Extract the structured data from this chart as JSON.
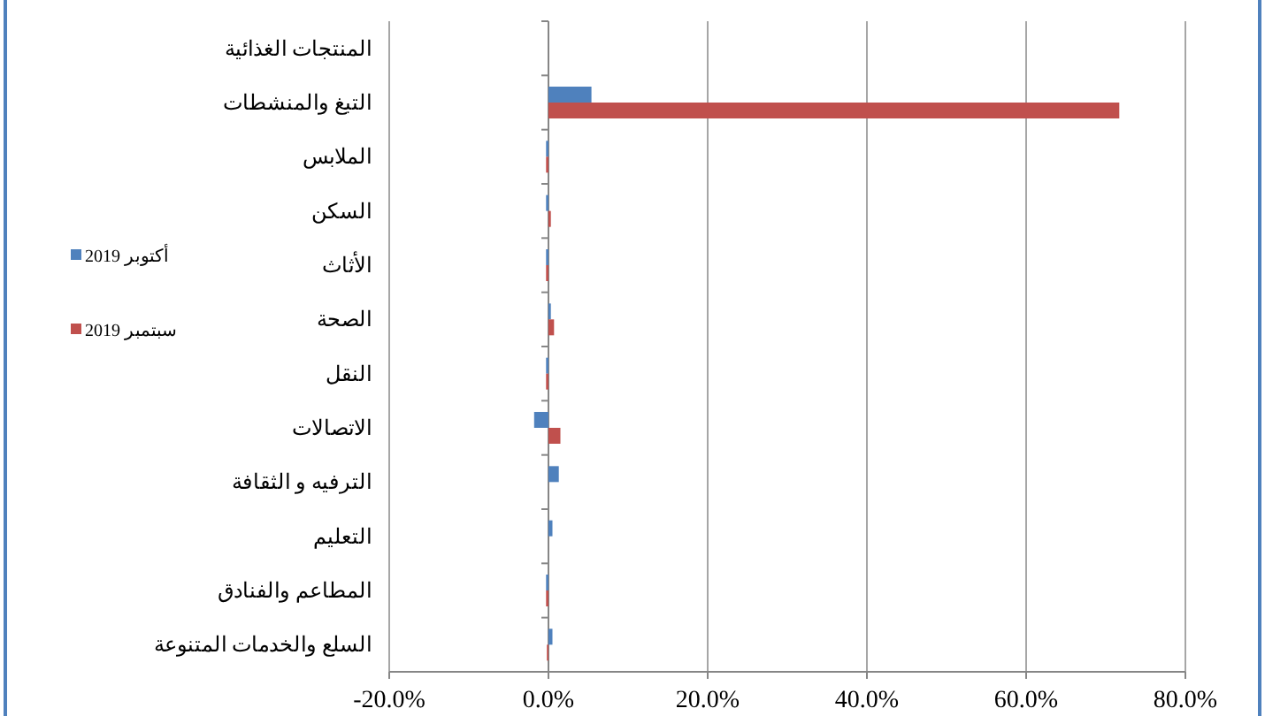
{
  "chart_data": {
    "type": "bar",
    "orientation": "horizontal",
    "categories": [
      "المنتجات الغذائية",
      "التبغ والمنشطات",
      "الملابس",
      "السكن",
      "الأثاث",
      "الصحة",
      "النقل",
      "الاتصالات",
      "الترفيه و الثقافة",
      "التعليم",
      "المطاعم والفنادق",
      "السلع والخدمات المتنوعة"
    ],
    "series": [
      {
        "name": "أكتوبر 2019",
        "color": "#4f81bd",
        "values": [
          0,
          5.4,
          -0.3,
          -0.3,
          -0.3,
          0.3,
          -0.3,
          -1.8,
          1.3,
          0.5,
          -0.3,
          0.5
        ]
      },
      {
        "name": "سبتمبر 2019",
        "color": "#c0504d",
        "values": [
          0,
          71.7,
          -0.3,
          0.3,
          -0.3,
          0.7,
          -0.3,
          1.5,
          0,
          0,
          -0.3,
          -0.2
        ]
      }
    ],
    "xlim": [
      -20,
      80
    ],
    "xticks": [
      {
        "value": -20,
        "label": "-20.0%"
      },
      {
        "value": 0,
        "label": "0.0%"
      },
      {
        "value": 20,
        "label": "20.0%"
      },
      {
        "value": 40,
        "label": "40.0%"
      },
      {
        "value": 60,
        "label": "60.0%"
      },
      {
        "value": 80,
        "label": "80.0%"
      }
    ],
    "grid": "x",
    "legend": "left"
  }
}
